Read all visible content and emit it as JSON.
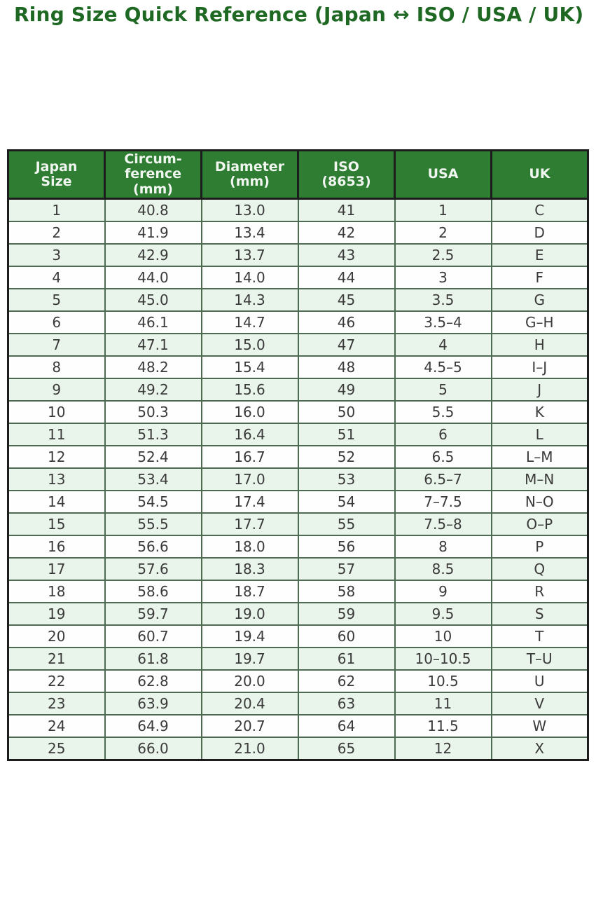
{
  "title": {
    "text": "Ring Size Quick Reference (Japan ↔ ISO / USA / UK)"
  },
  "colors": {
    "title_color": "#1e6823",
    "header_bg": "#2e7d32",
    "header_text": "#f1f6f1",
    "row_alt_bg": "#e9f4ea",
    "row_bg": "#fdfefd",
    "cell_text": "#3a3a3a",
    "border_outer": "#1c1c1c",
    "border_inner": "#4e6a50"
  },
  "table": {
    "columns": [
      "Japan\nSize",
      "Circum-\nference\n(mm)",
      "Diameter\n(mm)",
      "ISO\n(8653)",
      "USA",
      "UK"
    ],
    "rows": [
      [
        "1",
        "40.8",
        "13.0",
        "41",
        "1",
        "C"
      ],
      [
        "2",
        "41.9",
        "13.4",
        "42",
        "2",
        "D"
      ],
      [
        "3",
        "42.9",
        "13.7",
        "43",
        "2.5",
        "E"
      ],
      [
        "4",
        "44.0",
        "14.0",
        "44",
        "3",
        "F"
      ],
      [
        "5",
        "45.0",
        "14.3",
        "45",
        "3.5",
        "G"
      ],
      [
        "6",
        "46.1",
        "14.7",
        "46",
        "3.5–4",
        "G–H"
      ],
      [
        "7",
        "47.1",
        "15.0",
        "47",
        "4",
        "H"
      ],
      [
        "8",
        "48.2",
        "15.4",
        "48",
        "4.5–5",
        "I–J"
      ],
      [
        "9",
        "49.2",
        "15.6",
        "49",
        "5",
        "J"
      ],
      [
        "10",
        "50.3",
        "16.0",
        "50",
        "5.5",
        "K"
      ],
      [
        "11",
        "51.3",
        "16.4",
        "51",
        "6",
        "L"
      ],
      [
        "12",
        "52.4",
        "16.7",
        "52",
        "6.5",
        "L–M"
      ],
      [
        "13",
        "53.4",
        "17.0",
        "53",
        "6.5–7",
        "M–N"
      ],
      [
        "14",
        "54.5",
        "17.4",
        "54",
        "7–7.5",
        "N–O"
      ],
      [
        "15",
        "55.5",
        "17.7",
        "55",
        "7.5–8",
        "O–P"
      ],
      [
        "16",
        "56.6",
        "18.0",
        "56",
        "8",
        "P"
      ],
      [
        "17",
        "57.6",
        "18.3",
        "57",
        "8.5",
        "Q"
      ],
      [
        "18",
        "58.6",
        "18.7",
        "58",
        "9",
        "R"
      ],
      [
        "19",
        "59.7",
        "19.0",
        "59",
        "9.5",
        "S"
      ],
      [
        "20",
        "60.7",
        "19.4",
        "60",
        "10",
        "T"
      ],
      [
        "21",
        "61.8",
        "19.7",
        "61",
        "10–10.5",
        "T–U"
      ],
      [
        "22",
        "62.8",
        "20.0",
        "62",
        "10.5",
        "U"
      ],
      [
        "23",
        "63.9",
        "20.4",
        "63",
        "11",
        "V"
      ],
      [
        "24",
        "64.9",
        "20.7",
        "64",
        "11.5",
        "W"
      ],
      [
        "25",
        "66.0",
        "21.0",
        "65",
        "12",
        "X"
      ]
    ]
  }
}
